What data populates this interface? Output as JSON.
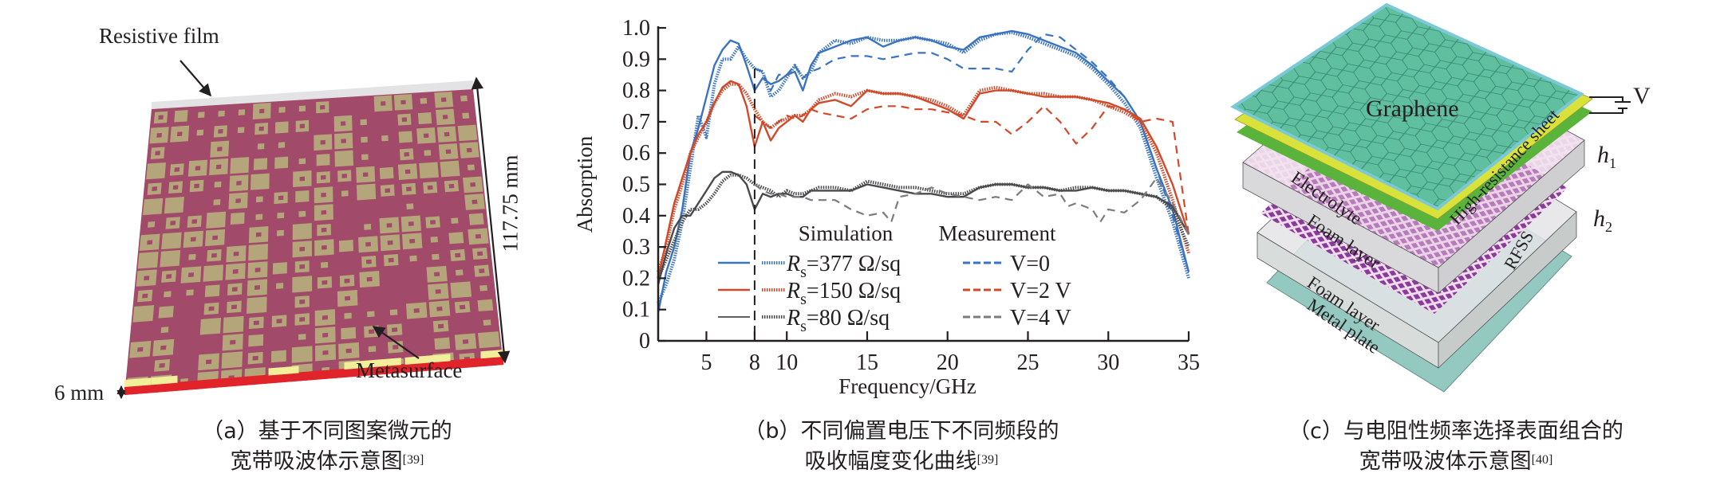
{
  "panel_a": {
    "labels": {
      "resistive_film": "Resistive film",
      "height_dim": "117.75 mm",
      "thickness_dim": "6 mm",
      "metasurface": "Metasurface"
    },
    "colors": {
      "substrate": "#a24a6a",
      "patch": "#b5a57a",
      "film": "#e3e3e5",
      "edge_red": "#e1242a",
      "edge_yellow": "#f2ee99"
    },
    "caption_line1": "（a）基于不同图案微元的",
    "caption_line2": "宽带吸波体示意图",
    "caption_ref": "[39]"
  },
  "panel_b": {
    "caption_line1": "（b）不同偏置电压下不同频段的",
    "caption_line2": "吸收幅度变化曲线",
    "caption_ref": "[39]",
    "legend": {
      "simulation_title": "Simulation",
      "measurement_title": "Measurement",
      "rs_symbol": "R",
      "rs_sub": "s",
      "sim_entries": [
        "=377 Ω/sq",
        "=150 Ω/sq",
        "=80 Ω/sq"
      ],
      "meas_entries": [
        "V=0",
        "V=2 V",
        "V=4 V"
      ]
    }
  },
  "panel_c": {
    "labels": {
      "graphene": "Graphene",
      "voltage": "V",
      "electrolyte": "Electrolyte",
      "high_resistance": "High-resistance sheet",
      "h1": "h",
      "h1_sub": "1",
      "h2": "h",
      "h2_sub": "2",
      "foam_layer_1": "Foam layer",
      "rfss": "RFSS",
      "foam_layer_2": "Foam layer",
      "metal_plate": "Metal plate"
    },
    "colors": {
      "graphene": "#5fbf9f",
      "graphene_edge": "#7cc9d6",
      "yellow_sheet": "#d8e23a",
      "green_sheet": "#5ab43c",
      "foam": "#d9d9dc",
      "rfss": "#8a3a9a",
      "metal": "#93c9c0"
    },
    "caption_line1": "（c）与电阻性频率选择表面组合的",
    "caption_line2": "宽带吸波体示意图",
    "caption_ref": "[40]"
  },
  "chart_data": {
    "type": "line",
    "title": "",
    "xlabel": "Frequency/GHz",
    "ylabel": "Absorption",
    "xlim": [
      2,
      35
    ],
    "ylim": [
      0,
      1.0
    ],
    "xticks": [
      5,
      8,
      10,
      15,
      20,
      25,
      30,
      35
    ],
    "yticks": [
      0,
      0.1,
      0.2,
      0.3,
      0.4,
      0.5,
      0.6,
      0.7,
      0.8,
      0.9,
      1.0
    ],
    "ytick_labels": [
      "0",
      "0.1",
      "0.2",
      "0.3",
      "0.4",
      "0.5",
      "0.6",
      "0.7",
      "0.8",
      "0.9",
      "1.0"
    ],
    "grid": false,
    "legend_position": "bottom-center",
    "annotations": [
      {
        "type": "vertical-dashed-line",
        "x": 8
      }
    ],
    "colors": {
      "blue": "#3a73c0",
      "red": "#d2492a",
      "gray": "#4a4a4d",
      "gray_meas": "#7a7c80"
    },
    "series": [
      {
        "name": "Rs=377 Ω/sq (simulation solid)",
        "color": "blue",
        "style": "solid",
        "x": [
          2,
          2.5,
          3,
          3.5,
          4,
          4.5,
          5,
          5.5,
          6,
          6.5,
          7,
          7.5,
          8,
          8.5,
          9,
          9.5,
          10,
          10.5,
          11,
          11.5,
          12,
          13,
          14,
          15,
          16,
          17,
          18,
          19,
          20,
          21,
          22,
          23,
          24,
          25,
          26,
          27,
          28,
          29,
          30,
          31,
          32,
          33,
          34,
          35
        ],
        "y": [
          0.09,
          0.22,
          0.3,
          0.42,
          0.6,
          0.68,
          0.78,
          0.88,
          0.93,
          0.96,
          0.95,
          0.88,
          0.8,
          0.84,
          0.82,
          0.83,
          0.85,
          0.86,
          0.8,
          0.88,
          0.92,
          0.94,
          0.96,
          0.97,
          0.94,
          0.96,
          0.97,
          0.96,
          0.94,
          0.93,
          0.97,
          0.98,
          0.99,
          0.98,
          0.96,
          0.94,
          0.92,
          0.88,
          0.83,
          0.78,
          0.7,
          0.55,
          0.42,
          0.22
        ]
      },
      {
        "name": "Rs=377 Ω/sq (simulation dotted)",
        "color": "blue",
        "style": "dotted",
        "x": [
          2,
          2.5,
          3,
          3.5,
          4,
          4.5,
          5,
          5.5,
          6,
          6.5,
          7,
          7.5,
          8,
          8.5,
          9,
          9.5,
          10,
          10.5,
          11,
          11.5,
          12,
          13,
          14,
          15,
          16,
          17,
          18,
          19,
          20,
          21,
          22,
          23,
          24,
          25,
          26,
          27,
          28,
          29,
          30,
          31,
          32,
          33,
          34,
          35
        ],
        "y": [
          0.12,
          0.18,
          0.26,
          0.38,
          0.55,
          0.72,
          0.65,
          0.82,
          0.9,
          0.9,
          0.94,
          0.9,
          0.87,
          0.86,
          0.78,
          0.8,
          0.84,
          0.88,
          0.84,
          0.86,
          0.92,
          0.96,
          0.95,
          0.97,
          0.96,
          0.96,
          0.97,
          0.96,
          0.95,
          0.92,
          0.96,
          0.98,
          0.985,
          0.97,
          0.95,
          0.93,
          0.91,
          0.87,
          0.82,
          0.76,
          0.68,
          0.52,
          0.38,
          0.2
        ]
      },
      {
        "name": "V=0 (measurement)",
        "color": "blue",
        "style": "dashed",
        "x": [
          8,
          8.5,
          9,
          9.5,
          10,
          10.5,
          11,
          11.5,
          12,
          13,
          14,
          15,
          16,
          17,
          18,
          19,
          20,
          21,
          22,
          23,
          24,
          25,
          26,
          27,
          28,
          29,
          30,
          31,
          32,
          33,
          34,
          35
        ],
        "y": [
          0.87,
          0.86,
          0.8,
          0.85,
          0.85,
          0.88,
          0.84,
          0.86,
          0.87,
          0.9,
          0.91,
          0.91,
          0.9,
          0.91,
          0.92,
          0.92,
          0.9,
          0.87,
          0.87,
          0.87,
          0.86,
          0.93,
          0.98,
          0.97,
          0.93,
          0.89,
          0.84,
          0.78,
          0.7,
          0.55,
          0.4,
          0.22
        ]
      },
      {
        "name": "Rs=150 Ω/sq (simulation solid)",
        "color": "red",
        "style": "solid",
        "x": [
          2,
          2.5,
          3,
          3.5,
          4,
          4.5,
          5,
          5.5,
          6,
          6.5,
          7,
          7.5,
          8,
          8.5,
          9,
          9.5,
          10,
          10.5,
          11,
          11.5,
          12,
          13,
          14,
          15,
          16,
          17,
          18,
          19,
          20,
          21,
          22,
          23,
          24,
          25,
          26,
          27,
          28,
          29,
          30,
          31,
          32,
          33,
          34,
          35
        ],
        "y": [
          0.2,
          0.32,
          0.44,
          0.52,
          0.6,
          0.66,
          0.7,
          0.76,
          0.81,
          0.83,
          0.82,
          0.75,
          0.62,
          0.7,
          0.64,
          0.68,
          0.7,
          0.72,
          0.7,
          0.74,
          0.76,
          0.77,
          0.75,
          0.8,
          0.79,
          0.79,
          0.78,
          0.76,
          0.74,
          0.71,
          0.79,
          0.8,
          0.8,
          0.79,
          0.78,
          0.78,
          0.78,
          0.77,
          0.76,
          0.74,
          0.71,
          0.62,
          0.5,
          0.34
        ]
      },
      {
        "name": "Rs=150 Ω/sq (simulation dotted)",
        "color": "red",
        "style": "dotted",
        "x": [
          2,
          2.5,
          3,
          3.5,
          4,
          4.5,
          5,
          5.5,
          6,
          6.5,
          7,
          7.5,
          8,
          8.5,
          9,
          9.5,
          10,
          10.5,
          11,
          11.5,
          12,
          13,
          14,
          15,
          16,
          17,
          18,
          19,
          20,
          21,
          22,
          23,
          24,
          25,
          26,
          27,
          28,
          29,
          30,
          31,
          32,
          33,
          34,
          35
        ],
        "y": [
          0.22,
          0.3,
          0.42,
          0.5,
          0.6,
          0.65,
          0.7,
          0.76,
          0.8,
          0.82,
          0.82,
          0.79,
          0.74,
          0.7,
          0.68,
          0.7,
          0.71,
          0.72,
          0.72,
          0.74,
          0.77,
          0.79,
          0.78,
          0.8,
          0.79,
          0.79,
          0.78,
          0.77,
          0.75,
          0.72,
          0.8,
          0.81,
          0.8,
          0.79,
          0.79,
          0.78,
          0.78,
          0.77,
          0.75,
          0.73,
          0.7,
          0.6,
          0.45,
          0.28
        ]
      },
      {
        "name": "V=2 V (measurement)",
        "color": "red",
        "style": "dashed",
        "x": [
          8,
          8.5,
          9,
          9.5,
          10,
          10.5,
          11,
          11.5,
          12,
          13,
          14,
          15,
          16,
          17,
          18,
          19,
          20,
          21,
          22,
          23,
          24,
          25,
          26,
          27,
          28,
          29,
          30,
          31,
          32,
          33,
          34,
          35
        ],
        "y": [
          0.72,
          0.7,
          0.68,
          0.7,
          0.72,
          0.71,
          0.72,
          0.74,
          0.73,
          0.72,
          0.71,
          0.74,
          0.75,
          0.75,
          0.74,
          0.74,
          0.73,
          0.72,
          0.7,
          0.7,
          0.66,
          0.7,
          0.75,
          0.7,
          0.63,
          0.68,
          0.75,
          0.74,
          0.7,
          0.71,
          0.7,
          0.34
        ]
      },
      {
        "name": "Rs=80 Ω/sq (simulation solid)",
        "color": "gray",
        "style": "solid",
        "x": [
          2,
          2.5,
          3,
          3.5,
          4,
          4.5,
          5,
          5.5,
          6,
          6.5,
          7,
          7.5,
          8,
          8.5,
          9,
          9.5,
          10,
          10.5,
          11,
          11.5,
          12,
          13,
          14,
          15,
          16,
          17,
          18,
          19,
          20,
          21,
          22,
          23,
          24,
          25,
          26,
          27,
          28,
          29,
          30,
          31,
          32,
          33,
          34,
          35
        ],
        "y": [
          0.18,
          0.28,
          0.36,
          0.4,
          0.4,
          0.44,
          0.48,
          0.52,
          0.54,
          0.54,
          0.53,
          0.5,
          0.42,
          0.47,
          0.46,
          0.47,
          0.47,
          0.46,
          0.46,
          0.48,
          0.48,
          0.48,
          0.48,
          0.5,
          0.49,
          0.48,
          0.47,
          0.47,
          0.46,
          0.46,
          0.49,
          0.5,
          0.5,
          0.49,
          0.49,
          0.48,
          0.48,
          0.49,
          0.48,
          0.48,
          0.47,
          0.46,
          0.43,
          0.34
        ]
      },
      {
        "name": "Rs=80 Ω/sq (simulation dotted)",
        "color": "gray",
        "style": "dotted",
        "x": [
          2,
          2.5,
          3,
          3.5,
          4,
          4.5,
          5,
          5.5,
          6,
          6.5,
          7,
          7.5,
          8,
          8.5,
          9,
          9.5,
          10,
          10.5,
          11,
          11.5,
          12,
          13,
          14,
          15,
          16,
          17,
          18,
          19,
          20,
          21,
          22,
          23,
          24,
          25,
          26,
          27,
          28,
          29,
          30,
          31,
          32,
          33,
          34,
          35
        ],
        "y": [
          0.2,
          0.26,
          0.32,
          0.38,
          0.42,
          0.42,
          0.44,
          0.47,
          0.51,
          0.53,
          0.53,
          0.52,
          0.5,
          0.49,
          0.48,
          0.46,
          0.48,
          0.47,
          0.47,
          0.48,
          0.49,
          0.49,
          0.48,
          0.51,
          0.5,
          0.49,
          0.49,
          0.48,
          0.47,
          0.47,
          0.49,
          0.5,
          0.5,
          0.49,
          0.49,
          0.48,
          0.49,
          0.49,
          0.48,
          0.48,
          0.47,
          0.46,
          0.42,
          0.3
        ]
      },
      {
        "name": "V=4 V (measurement)",
        "color": "gray_meas",
        "style": "dashed",
        "x": [
          8,
          8.5,
          9,
          9.5,
          10,
          10.5,
          11,
          11.5,
          12,
          13,
          14,
          15,
          16,
          16.5,
          17,
          18,
          19,
          20,
          21,
          22,
          23,
          24,
          25,
          26,
          27,
          27.5,
          28,
          29,
          29.5,
          30,
          31,
          32,
          33,
          34,
          35
        ],
        "y": [
          0.5,
          0.48,
          0.47,
          0.47,
          0.46,
          0.46,
          0.46,
          0.45,
          0.45,
          0.45,
          0.42,
          0.4,
          0.41,
          0.38,
          0.46,
          0.47,
          0.49,
          0.47,
          0.46,
          0.45,
          0.46,
          0.45,
          0.5,
          0.46,
          0.47,
          0.43,
          0.44,
          0.42,
          0.38,
          0.42,
          0.41,
          0.45,
          0.52,
          0.44,
          0.34
        ]
      }
    ]
  }
}
